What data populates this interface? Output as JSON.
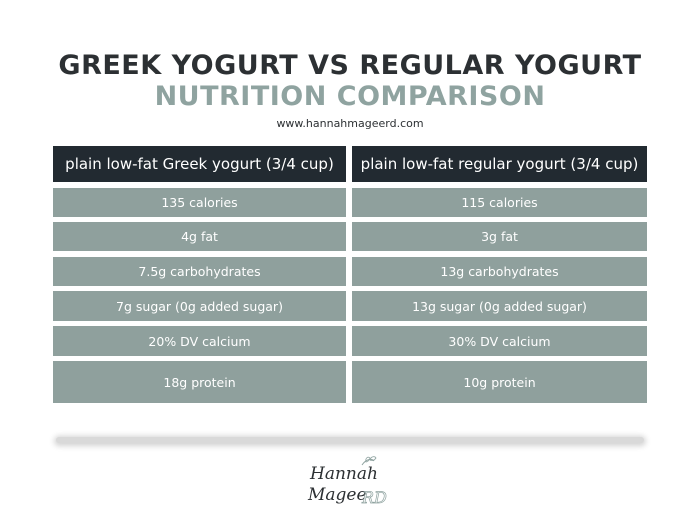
{
  "header": {
    "title_line1": "GREEK YOGURT VS REGULAR YOGURT",
    "title_line2": "NUTRITION COMPARISON",
    "website": "www.hannahmageerd.com"
  },
  "table": {
    "columns": [
      "plain low-fat Greek yogurt (3/4 cup)",
      "plain low-fat regular yogurt (3/4 cup)"
    ],
    "rows": [
      [
        "135 calories",
        "115 calories"
      ],
      [
        "4g fat",
        "3g fat"
      ],
      [
        "7.5g carbohydrates",
        "13g carbohydrates"
      ],
      [
        "7g sugar (0g added sugar)",
        "13g sugar (0g added sugar)"
      ],
      [
        "20% DV calcium",
        "30% DV calcium"
      ],
      [
        "18g protein",
        "10g protein"
      ]
    ]
  },
  "logo": {
    "line1": "Hannah",
    "line2": "Magee",
    "suffix": "RD",
    "name": "hannah-magee-rd-logo"
  },
  "colors": {
    "header_bg": "#222a31",
    "row_bg": "#8fa09d",
    "title_dark": "#2c3033",
    "title_accent": "#8fa3a0"
  }
}
